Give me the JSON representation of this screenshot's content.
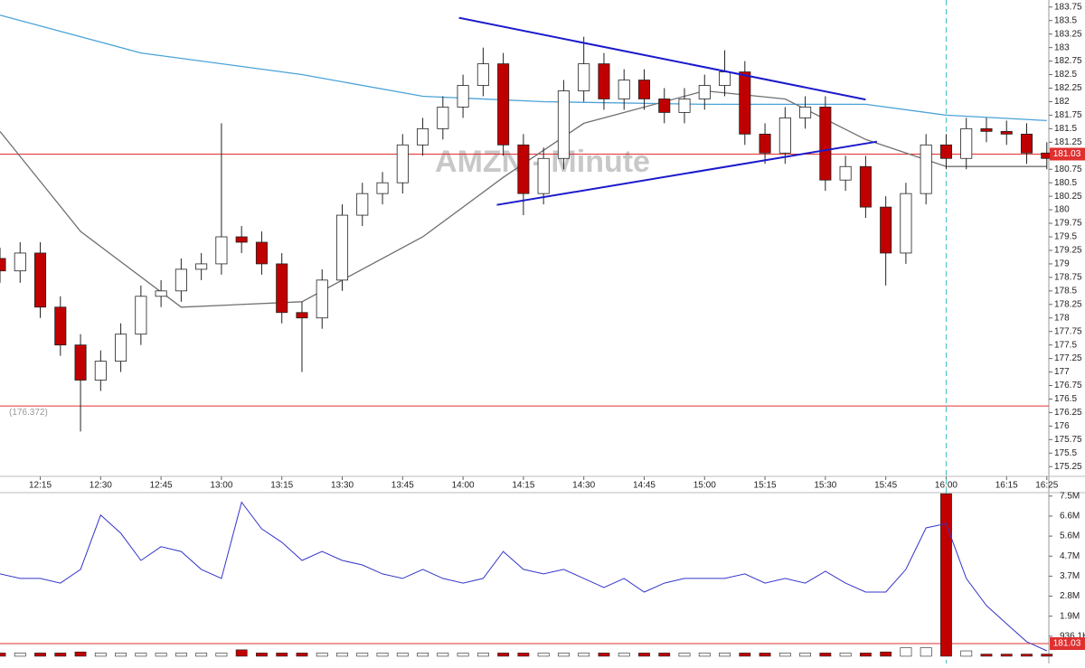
{
  "chart_data": {
    "type": "candlestick",
    "watermark": "AMZN - Minute",
    "x": [
      725,
      730,
      735,
      740,
      745,
      750,
      755,
      760,
      765,
      770,
      775,
      780,
      785,
      790,
      795,
      800,
      805,
      810,
      815,
      820,
      825,
      830,
      835,
      840,
      845,
      850,
      855,
      860,
      865,
      870,
      875,
      880,
      885,
      890,
      895,
      900,
      905,
      910,
      915,
      920,
      925,
      930,
      935,
      940,
      945,
      950,
      955,
      960,
      965,
      970,
      975,
      980,
      985
    ],
    "open": [
      179.1,
      178.87,
      179.2,
      178.2,
      177.5,
      176.85,
      177.2,
      177.7,
      178.4,
      178.5,
      178.9,
      179.0,
      179.5,
      179.4,
      179.0,
      178.1,
      178.0,
      178.7,
      179.9,
      180.3,
      180.5,
      181.2,
      181.5,
      181.9,
      182.3,
      182.7,
      181.2,
      180.3,
      180.95,
      182.2,
      182.7,
      182.05,
      182.4,
      182.05,
      181.8,
      182.05,
      182.3,
      182.55,
      181.4,
      181.05,
      181.7,
      181.9,
      180.55,
      180.8,
      180.05,
      179.2,
      180.3,
      181.2,
      180.95,
      181.5,
      181.45,
      181.4,
      181.05
    ],
    "high": [
      179.3,
      179.4,
      179.4,
      178.4,
      177.7,
      177.4,
      177.9,
      178.6,
      178.7,
      179.1,
      179.2,
      181.6,
      179.7,
      179.6,
      179.2,
      178.3,
      178.9,
      180.1,
      180.5,
      180.7,
      181.4,
      181.7,
      182.1,
      182.5,
      183.0,
      182.9,
      181.4,
      181.15,
      182.4,
      183.2,
      182.9,
      182.6,
      182.6,
      182.25,
      182.25,
      182.5,
      182.95,
      182.75,
      181.6,
      181.9,
      182.1,
      182.1,
      181.0,
      181.0,
      180.25,
      180.5,
      181.4,
      181.4,
      181.7,
      181.7,
      181.65,
      181.6,
      181.25
    ],
    "low": [
      178.65,
      178.65,
      178.0,
      177.3,
      175.9,
      176.65,
      177.0,
      177.5,
      178.2,
      178.3,
      178.7,
      178.8,
      179.2,
      178.8,
      177.9,
      177.0,
      177.8,
      178.5,
      179.7,
      180.1,
      180.3,
      181.0,
      181.3,
      181.7,
      182.1,
      181.0,
      179.9,
      180.1,
      180.75,
      182.0,
      181.85,
      181.85,
      181.85,
      181.6,
      181.6,
      181.85,
      182.1,
      181.2,
      180.85,
      180.85,
      181.5,
      180.35,
      180.35,
      179.85,
      178.6,
      179.0,
      180.1,
      180.75,
      180.75,
      181.25,
      181.2,
      180.85,
      180.75
    ],
    "close": [
      178.87,
      179.2,
      178.2,
      177.5,
      176.85,
      177.2,
      177.7,
      178.4,
      178.5,
      178.9,
      179.0,
      179.5,
      179.4,
      179.0,
      178.1,
      178.0,
      178.7,
      179.9,
      180.3,
      180.5,
      181.2,
      181.5,
      181.9,
      182.3,
      182.7,
      181.2,
      180.3,
      180.95,
      182.2,
      182.7,
      182.05,
      182.4,
      182.05,
      181.8,
      182.05,
      182.3,
      182.55,
      181.4,
      181.05,
      181.7,
      181.9,
      180.55,
      180.8,
      180.05,
      179.2,
      180.3,
      181.2,
      180.95,
      181.5,
      181.45,
      181.4,
      181.05,
      180.95
    ],
    "up_color": "#ffffff",
    "down_color": "#c00000",
    "xlim": [
      725,
      985.5
    ],
    "xticks": [
      {
        "value": 735,
        "label": "12:15"
      },
      {
        "value": 750,
        "label": "12:30"
      },
      {
        "value": 765,
        "label": "12:45"
      },
      {
        "value": 780,
        "label": "13:00"
      },
      {
        "value": 795,
        "label": "13:15"
      },
      {
        "value": 810,
        "label": "13:30"
      },
      {
        "value": 825,
        "label": "13:45"
      },
      {
        "value": 840,
        "label": "14:00"
      },
      {
        "value": 855,
        "label": "14:15"
      },
      {
        "value": 870,
        "label": "14:30"
      },
      {
        "value": 885,
        "label": "14:45"
      },
      {
        "value": 900,
        "label": "15:00"
      },
      {
        "value": 915,
        "label": "15:15"
      },
      {
        "value": 930,
        "label": "15:30"
      },
      {
        "value": 945,
        "label": "15:45"
      },
      {
        "value": 960,
        "label": "16:00"
      },
      {
        "value": 975,
        "label": "16:15"
      },
      {
        "value": 985,
        "label": "16:25"
      }
    ],
    "ylim": [
      175.07,
      183.88
    ],
    "yticks": [
      175.25,
      175.5,
      175.75,
      176,
      176.25,
      176.5,
      176.75,
      177,
      177.25,
      177.5,
      177.75,
      178,
      178.25,
      178.5,
      178.75,
      179,
      179.25,
      179.5,
      179.75,
      180,
      180.25,
      180.5,
      180.75,
      181,
      181.25,
      181.5,
      181.75,
      182,
      182.25,
      182.5,
      182.75,
      183,
      183.25,
      183.5,
      183.75
    ],
    "hlines": [
      {
        "value": 181.03,
        "label": "181.03",
        "color": "#e03030"
      },
      {
        "value": 176.372,
        "label": "(176.372)",
        "color": "#e03030"
      }
    ],
    "vline": {
      "value": 960,
      "color": "#40c0c0"
    },
    "overlays": [
      {
        "color": "#4aa3d8",
        "x": [
          725,
          760,
          800,
          830,
          860,
          900,
          940,
          960,
          985
        ],
        "values": [
          183.6,
          182.9,
          182.5,
          182.1,
          182.0,
          181.95,
          181.95,
          181.75,
          181.65
        ]
      },
      {
        "color": "#707070",
        "x": [
          725,
          745,
          770,
          800,
          830,
          850,
          870,
          900,
          920,
          940,
          960,
          985
        ],
        "values": [
          181.45,
          179.6,
          178.2,
          178.3,
          179.5,
          180.6,
          181.6,
          182.2,
          182.05,
          181.3,
          180.8,
          180.8
        ]
      }
    ],
    "trendlines": [
      {
        "color": "#1a1acc",
        "x": [
          839,
          940
        ],
        "values": [
          183.55,
          182.04
        ]
      },
      {
        "color": "#1a1acc",
        "x": [
          848.4,
          942.8
        ],
        "values": [
          180.09,
          181.26
        ]
      }
    ],
    "volume": {
      "values": [
        150000,
        150000,
        150000,
        150000,
        200000,
        150000,
        150000,
        150000,
        150000,
        150000,
        150000,
        150000,
        300000,
        150000,
        150000,
        150000,
        150000,
        150000,
        150000,
        150000,
        150000,
        150000,
        150000,
        150000,
        150000,
        150000,
        150000,
        150000,
        150000,
        150000,
        150000,
        150000,
        150000,
        150000,
        150000,
        150000,
        150000,
        150000,
        150000,
        150000,
        150000,
        150000,
        150000,
        150000,
        200000,
        400000,
        400000,
        7600000,
        250000,
        100000,
        100000,
        100000,
        100000
      ],
      "line": [
        3850000,
        3640000,
        3640000,
        3420000,
        4060000,
        6600000,
        5750000,
        4480000,
        5120000,
        4900000,
        4060000,
        3640000,
        7200000,
        5960000,
        5330000,
        4480000,
        4900000,
        4480000,
        4270000,
        3850000,
        3640000,
        4060000,
        3640000,
        3420000,
        3640000,
        4900000,
        4060000,
        3850000,
        4060000,
        3640000,
        3210000,
        3640000,
        3000000,
        3420000,
        3640000,
        3640000,
        3640000,
        3850000,
        3420000,
        3640000,
        3420000,
        3970000,
        3420000,
        3000000,
        3000000,
        4060000,
        6000000,
        6200000,
        3640000,
        2370000,
        1520000,
        680000,
        250000
      ],
      "line_color": "#3535c8",
      "ylim": [
        -340000,
        7650000
      ],
      "yticks": [
        {
          "value": 7488800,
          "label": "7.5M"
        },
        {
          "value": 6552700,
          "label": "6.6M"
        },
        {
          "value": 5616600,
          "label": "5.6M"
        },
        {
          "value": 4680500,
          "label": "4.7M"
        },
        {
          "value": 3744400,
          "label": "3.7M"
        },
        {
          "value": 2808300,
          "label": "2.8M"
        },
        {
          "value": 1872200,
          "label": "1.9M"
        },
        {
          "value": 936100,
          "label": "936.1K"
        }
      ]
    }
  }
}
